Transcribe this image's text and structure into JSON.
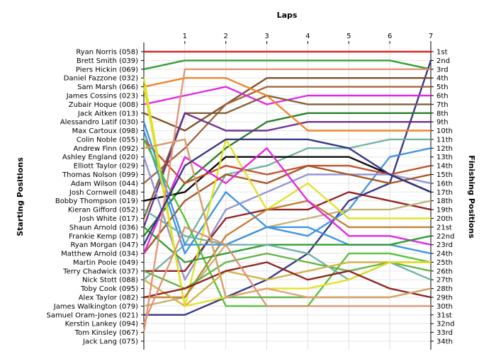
{
  "chart_data": {
    "type": "line",
    "title": "Laps",
    "left_axis_label": "Starting Positions",
    "right_axis_label": "Finishing Positions",
    "x": [
      0,
      1,
      2,
      3,
      4,
      5,
      6,
      7
    ],
    "x_tick_labels": [
      "1",
      "2",
      "3",
      "4",
      "5",
      "6",
      "7"
    ],
    "starting_labels": [
      "Ryan Norris (058)",
      "Brett Smith (039)",
      "Piers Hickin (069)",
      "Daniel Fazzone (032)",
      "Sam Marsh (066)",
      "James Cossins (023)",
      "Zubair Hoque (008)",
      "Jack Aitken (013)",
      "Alessandro Latif (030)",
      "Max Cartoux (098)",
      "Colin Noble (055)",
      "Andrew Finn (092)",
      "Ashley England (020)",
      "Elliott Taylor (029)",
      "Thomas Nolson (099)",
      "Adam Wilson (044)",
      "Josh Cornwell (048)",
      "Bobby Thompson (019)",
      "Kieran Gifford (052)",
      "Josh White (017)",
      "Shaun Arnold (036)",
      "Frankie Kemp (087)",
      "Ryan Morgan (047)",
      "Matthew Arnold (034)",
      "Martin Poole (049)",
      "Terry Chadwick (037)",
      "Nick Stott (088)",
      "Toby Cook (095)",
      "Alex Taylor (082)",
      "James Walkington (079)",
      "Samuel Oram-Jones (021)",
      "Kerstin Lankey (094)",
      "Tom Kinsley (067)",
      "Jack Lang (075)"
    ],
    "finishing_labels": [
      "1st",
      "2nd",
      "3rd",
      "4th",
      "5th",
      "6th",
      "7th",
      "8th",
      "9th",
      "10th",
      "11th",
      "12th",
      "13th",
      "14th",
      "15th",
      "16th",
      "17th",
      "18th",
      "19th",
      "20th",
      "21st",
      "22nd",
      "23rd",
      "24th",
      "25th",
      "26th",
      "27th",
      "28th",
      "29th",
      "30th",
      "31st",
      "32nd",
      "33rd",
      "34th"
    ],
    "ylim": [
      1,
      34
    ],
    "grid": true,
    "series": [
      {
        "color": "#d42020",
        "values": [
          1,
          1,
          1,
          1,
          1,
          1,
          1,
          1
        ]
      },
      {
        "color": "#2a9a2a",
        "values": [
          3,
          2,
          2,
          2,
          2,
          2,
          2,
          3
        ]
      },
      {
        "color": "#2e2e80",
        "values": [
          31,
          31,
          29,
          27,
          24,
          18,
          16,
          2
        ]
      },
      {
        "color": "#7a4a20",
        "values": [
          8,
          10,
          7,
          4,
          4,
          4,
          4,
          4
        ]
      },
      {
        "color": "#a0603a",
        "values": [
          16,
          12,
          7,
          5,
          5,
          5,
          5,
          5
        ]
      },
      {
        "color": "#e020e0",
        "values": [
          7,
          6,
          5,
          7,
          6,
          6,
          6,
          6
        ]
      },
      {
        "color": "#7a5a30",
        "values": [
          20,
          8,
          8,
          6,
          7,
          7,
          7,
          7
        ]
      },
      {
        "color": "#207a20",
        "values": [
          22,
          16,
          12,
          9,
          8,
          8,
          8,
          8
        ]
      },
      {
        "color": "#6a2a8a",
        "values": [
          21,
          8,
          10,
          10,
          9,
          9,
          9,
          9
        ]
      },
      {
        "color": "#f08020",
        "values": [
          5,
          4,
          4,
          6,
          10,
          10,
          10,
          10
        ]
      },
      {
        "color": "#6ab0a0",
        "values": [
          27,
          23,
          15,
          14,
          12,
          12,
          11,
          11
        ]
      },
      {
        "color": "#3a90e0",
        "values": [
          10,
          24,
          17,
          21,
          22,
          19,
          13,
          12
        ]
      },
      {
        "color": "#000000",
        "values": [
          18,
          17,
          13,
          13,
          13,
          13,
          15,
          17
        ]
      },
      {
        "color": "#c04a20",
        "values": [
          11,
          16,
          14,
          15,
          14,
          14,
          15,
          14
        ]
      },
      {
        "color": "#9090d0",
        "values": [
          13,
          27,
          19,
          17,
          15,
          15,
          15,
          16
        ]
      },
      {
        "color": "#a05020",
        "values": [
          24,
          18,
          15,
          16,
          14,
          15,
          16,
          15
        ]
      },
      {
        "color": "#8a1a1a",
        "values": [
          26,
          26,
          20,
          19,
          19,
          17,
          18,
          19
        ]
      },
      {
        "color": "#c0b070",
        "values": [
          30,
          29,
          23,
          21,
          20,
          19,
          19,
          18
        ]
      },
      {
        "color": "#e0e020",
        "values": [
          4,
          30,
          11,
          19,
          16,
          20,
          20,
          20
        ]
      },
      {
        "color": "#c07a30",
        "values": [
          29,
          29,
          22,
          19,
          18,
          21,
          21,
          21
        ]
      },
      {
        "color": "#e020e0",
        "values": [
          24,
          13,
          16,
          12,
          18,
          22,
          22,
          23
        ]
      },
      {
        "color": "#3a90e0",
        "values": [
          9,
          23,
          23,
          21,
          21,
          23,
          23,
          24
        ]
      },
      {
        "color": "#50c030",
        "values": [
          11,
          20,
          30,
          30,
          30,
          24,
          24,
          25
        ]
      },
      {
        "color": "#2a9a2a",
        "values": [
          21,
          25,
          24,
          23,
          23,
          23,
          23,
          22
        ]
      },
      {
        "color": "#60b040",
        "values": [
          26,
          28,
          25,
          24,
          25,
          26,
          25,
          26
        ]
      },
      {
        "color": "#6ab0a0",
        "values": [
          19,
          22,
          23,
          23,
          24,
          27,
          25,
          27
        ]
      },
      {
        "color": "#d0b040",
        "values": [
          27,
          30,
          26,
          27,
          26,
          25,
          25,
          25
        ]
      },
      {
        "color": "#e0e020",
        "values": [
          5,
          30,
          29,
          28,
          28,
          27,
          25,
          25
        ]
      },
      {
        "color": "#8a1a1a",
        "values": [
          29,
          28,
          26,
          25,
          27,
          26,
          28,
          29
        ]
      },
      {
        "color": "#e09070",
        "values": [
          32,
          21,
          23,
          30,
          30,
          30,
          30,
          30
        ]
      },
      {
        "color": "#60b040",
        "values": [
          12,
          11,
          29,
          29,
          29,
          29,
          29,
          28
        ]
      },
      {
        "color": "#e09070",
        "values": [
          33,
          3,
          3,
          3,
          3,
          3,
          3,
          3
        ]
      },
      {
        "color": "#e0a070",
        "values": [
          12,
          11,
          29,
          28,
          29,
          29,
          29,
          28
        ]
      },
      {
        "color": "#2e2e80",
        "values": [
          23,
          14,
          11,
          11,
          11,
          12,
          15,
          17
        ]
      }
    ]
  }
}
